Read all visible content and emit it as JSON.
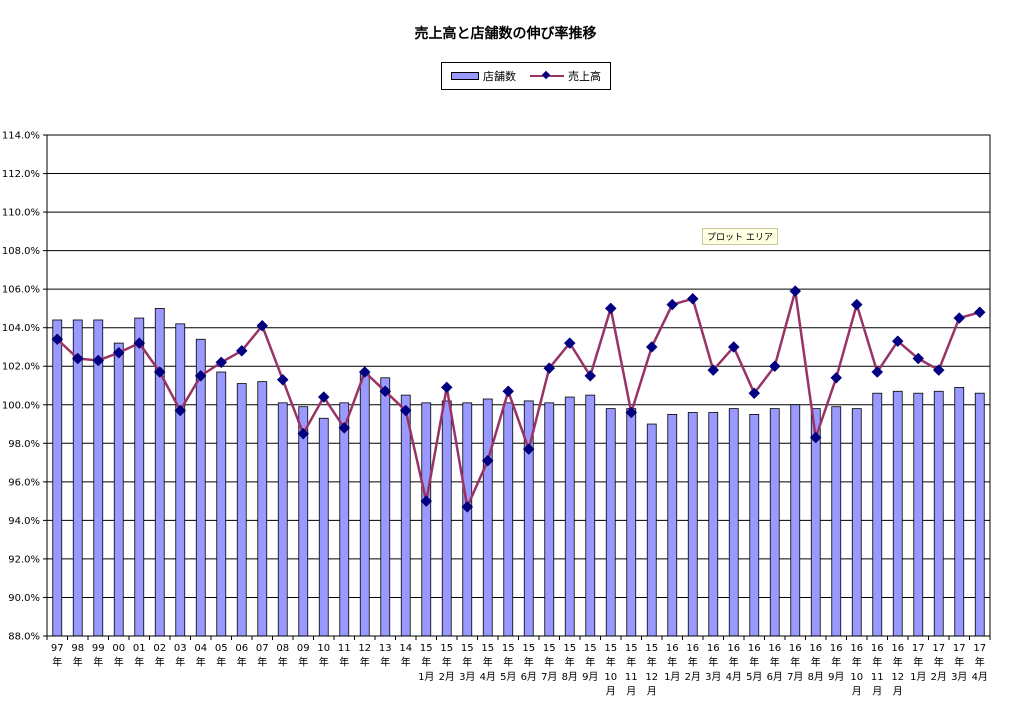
{
  "chart_data": {
    "type": "bar",
    "title": "売上高と店舗数の伸び率推移",
    "xlabel": "",
    "ylabel": "",
    "ylim": [
      88.0,
      114.0
    ],
    "ytick_step": 2.0,
    "ytick_suffix": "%",
    "grid": true,
    "legend_position": "top-center",
    "annotation": "プロット エリア",
    "categories": [
      [
        "97",
        "年"
      ],
      [
        "98",
        "年"
      ],
      [
        "99",
        "年"
      ],
      [
        "00",
        "年"
      ],
      [
        "01",
        "年"
      ],
      [
        "02",
        "年"
      ],
      [
        "03",
        "年"
      ],
      [
        "04",
        "年"
      ],
      [
        "05",
        "年"
      ],
      [
        "06",
        "年"
      ],
      [
        "07",
        "年"
      ],
      [
        "08",
        "年"
      ],
      [
        "09",
        "年"
      ],
      [
        "10",
        "年"
      ],
      [
        "11",
        "年"
      ],
      [
        "12",
        "年"
      ],
      [
        "13",
        "年"
      ],
      [
        "14",
        "年"
      ],
      [
        "15",
        "年",
        "1月"
      ],
      [
        "15",
        "年",
        "2月"
      ],
      [
        "15",
        "年",
        "3月"
      ],
      [
        "15",
        "年",
        "4月"
      ],
      [
        "15",
        "年",
        "5月"
      ],
      [
        "15",
        "年",
        "6月"
      ],
      [
        "15",
        "年",
        "7月"
      ],
      [
        "15",
        "年",
        "8月"
      ],
      [
        "15",
        "年",
        "9月"
      ],
      [
        "15",
        "年",
        "10",
        "月"
      ],
      [
        "15",
        "年",
        "11",
        "月"
      ],
      [
        "15",
        "年",
        "12",
        "月"
      ],
      [
        "16",
        "年",
        "1月"
      ],
      [
        "16",
        "年",
        "2月"
      ],
      [
        "16",
        "年",
        "3月"
      ],
      [
        "16",
        "年",
        "4月"
      ],
      [
        "16",
        "年",
        "5月"
      ],
      [
        "16",
        "年",
        "6月"
      ],
      [
        "16",
        "年",
        "7月"
      ],
      [
        "16",
        "年",
        "8月"
      ],
      [
        "16",
        "年",
        "9月"
      ],
      [
        "16",
        "年",
        "10",
        "月"
      ],
      [
        "16",
        "年",
        "11",
        "月"
      ],
      [
        "16",
        "年",
        "12",
        "月"
      ],
      [
        "17",
        "年",
        "1月"
      ],
      [
        "17",
        "年",
        "2月"
      ],
      [
        "17",
        "年",
        "3月"
      ],
      [
        "17",
        "年",
        "4月"
      ]
    ],
    "series": [
      {
        "name": "店舗数",
        "kind": "bar",
        "color": "#9999ff",
        "values": [
          104.4,
          104.4,
          104.4,
          103.2,
          104.5,
          105.0,
          104.2,
          103.4,
          101.7,
          101.1,
          101.2,
          100.1,
          99.9,
          99.3,
          100.1,
          101.6,
          101.4,
          100.5,
          100.1,
          100.2,
          100.1,
          100.3,
          100.1,
          100.2,
          100.1,
          100.4,
          100.5,
          99.8,
          99.8,
          99.0,
          99.5,
          99.6,
          99.6,
          99.8,
          99.5,
          99.8,
          100.0,
          99.8,
          99.9,
          99.8,
          100.6,
          100.7,
          100.6,
          100.7,
          100.9,
          100.6
        ]
      },
      {
        "name": "売上高",
        "kind": "line",
        "color": "#993366",
        "marker_color": "#000080",
        "values": [
          103.4,
          102.4,
          102.3,
          102.7,
          103.2,
          101.7,
          99.7,
          101.5,
          102.2,
          102.8,
          104.1,
          101.3,
          98.5,
          100.4,
          98.8,
          101.7,
          100.7,
          99.7,
          95.0,
          100.9,
          94.7,
          97.1,
          100.7,
          97.7,
          101.9,
          103.2,
          101.5,
          105.0,
          99.6,
          103.0,
          105.2,
          105.5,
          101.8,
          103.0,
          100.6,
          102.0,
          105.9,
          98.3,
          101.4,
          105.2,
          101.7,
          103.3,
          102.4,
          101.8,
          104.5,
          104.8
        ]
      }
    ]
  }
}
